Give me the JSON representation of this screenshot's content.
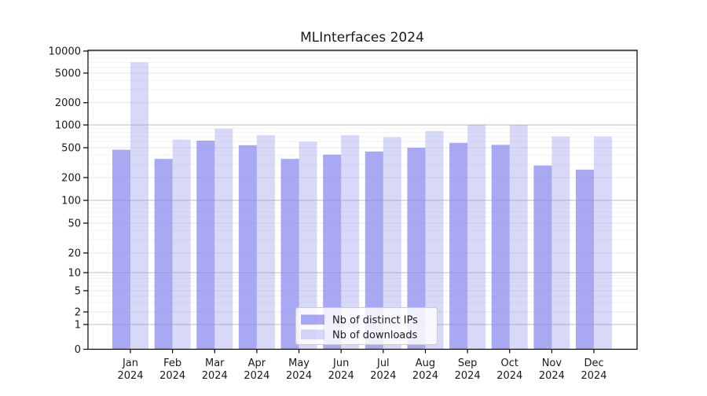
{
  "chart_data": {
    "type": "bar",
    "title": "MLInterfaces 2024",
    "categories": [
      "Jan",
      "Feb",
      "Mar",
      "Apr",
      "May",
      "Jun",
      "Jul",
      "Aug",
      "Sep",
      "Oct",
      "Nov",
      "Dec"
    ],
    "x_sub_label": "2024",
    "series": [
      {
        "name": "Nb of distinct IPs",
        "color": "#8888ee",
        "opacity": 0.73,
        "values": [
          470,
          355,
          620,
          540,
          355,
          405,
          445,
          500,
          580,
          545,
          290,
          255
        ]
      },
      {
        "name": "Nb of downloads",
        "color": "#8888ee",
        "opacity": 0.33,
        "values": [
          7000,
          640,
          890,
          730,
          600,
          730,
          690,
          830,
          1010,
          1000,
          700,
          700
        ]
      }
    ],
    "y_axis": {
      "scale": "symlog",
      "ticks": [
        0,
        1,
        2,
        5,
        10,
        20,
        50,
        100,
        200,
        500,
        1000,
        2000,
        5000,
        10000
      ],
      "ylim": [
        0,
        10000
      ]
    },
    "grid": true,
    "legend_position": "bottom-center",
    "colors": {
      "bar_base": "#8888ee",
      "grid_major_power10": "#bcbcbc",
      "grid_major_other": "#e7e7e7",
      "grid_minor": "#f3f3f3",
      "axis": "#000000",
      "legend_border": "#cccccc"
    }
  }
}
